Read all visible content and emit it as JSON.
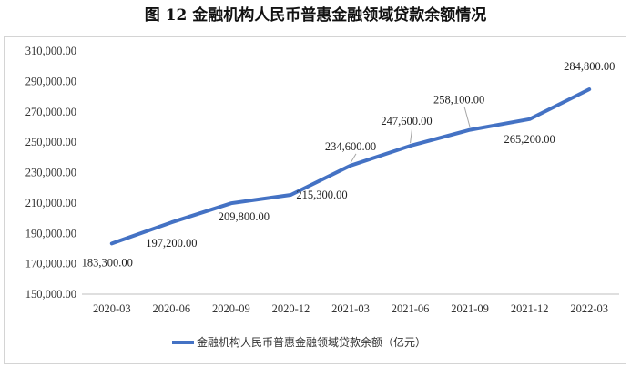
{
  "chart_data": {
    "type": "line",
    "title": "图 12  金融机构人民币普惠金融领域贷款余额情况",
    "xlabel": "",
    "ylabel": "",
    "categories": [
      "2020-03",
      "2020-06",
      "2020-09",
      "2020-12",
      "2021-03",
      "2021-06",
      "2021-09",
      "2021-12",
      "2022-03"
    ],
    "series": [
      {
        "name": "金融机构人民币普惠金融领域贷款余额（亿元）",
        "values": [
          183300,
          197200,
          209800,
          215300,
          234600,
          247600,
          258100,
          265200,
          284800
        ],
        "labels": [
          "183,300.00",
          "197,200.00",
          "209,800.00",
          "215,300.00",
          "234,600.00",
          "247,600.00",
          "258,100.00",
          "265,200.00",
          "284,800.00"
        ]
      }
    ],
    "ylim": [
      150000,
      310000
    ],
    "yticks": [
      150000,
      170000,
      190000,
      210000,
      230000,
      250000,
      270000,
      290000,
      310000
    ],
    "ytick_labels": [
      "150,000.00",
      "170,000.00",
      "190,000.00",
      "210,000.00",
      "230,000.00",
      "250,000.00",
      "270,000.00",
      "290,000.00",
      "310,000.00"
    ],
    "grid": false,
    "legend": "bottom",
    "line_color": "#4472C4"
  }
}
